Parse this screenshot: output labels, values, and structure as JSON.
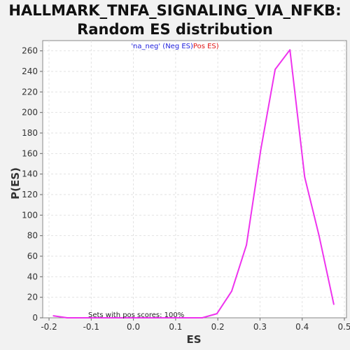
{
  "chart_data": {
    "type": "line",
    "title": [
      "HALLMARK_TNFA_SIGNALING_VIA_NFKB:",
      "Random ES distribution"
    ],
    "xlabel": "ES",
    "ylabel": "P(ES)",
    "xlim": [
      -0.215,
      0.505
    ],
    "ylim": [
      0,
      270
    ],
    "x_ticks": [
      -0.2,
      -0.1,
      0.0,
      0.1,
      0.2,
      0.3,
      0.4,
      0.5
    ],
    "x_tick_labels": [
      "-0.2",
      "-0.1",
      "0.0",
      "0.1",
      "0.2",
      "0.3",
      "0.4",
      "0.5"
    ],
    "y_ticks": [
      0,
      20,
      40,
      60,
      80,
      100,
      120,
      140,
      160,
      180,
      200,
      220,
      240,
      260
    ],
    "grid": true,
    "legend": {
      "placement": "top-center",
      "neg_label": "'na_neg' (Neg ES)",
      "pos_label": "Pos ES)"
    },
    "annotation": "Sets with pos scores: 100%",
    "series": [
      {
        "color": "#ee33ee",
        "x": [
          -0.19,
          -0.157,
          -0.124,
          -0.091,
          -0.058,
          -0.025,
          0.008,
          0.041,
          0.074,
          0.107,
          0.14,
          0.163,
          0.198,
          0.233,
          0.268,
          0.302,
          0.336,
          0.371,
          0.406,
          0.44,
          0.475
        ],
        "y": [
          2,
          0,
          0,
          0,
          0,
          0,
          0,
          0,
          0,
          0,
          0,
          0,
          4,
          26,
          71,
          164,
          242,
          261,
          137,
          80,
          13
        ]
      }
    ]
  }
}
